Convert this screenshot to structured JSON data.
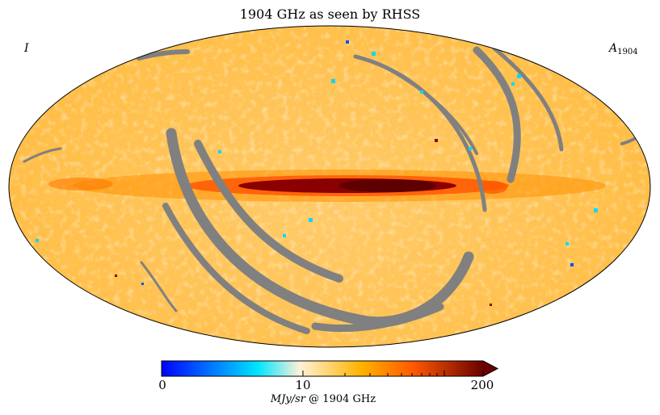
{
  "title": "1904 GHz as seen by RHSS",
  "corner_left": "I",
  "corner_right": {
    "base": "A",
    "sub": "1904"
  },
  "colorbar": {
    "ticks": [
      "0",
      "10",
      "200"
    ],
    "unit_italic": "MJy/sr",
    "unit_rest": " @ 1904 GHz",
    "min": 0,
    "max": 200,
    "colors": [
      "#0000ff",
      "#00e5ff",
      "#fff1d8",
      "#ffb300",
      "#ff5a00",
      "#6b0000"
    ]
  },
  "map": {
    "projection": "mollweide",
    "background_color": "#ffc24a",
    "masked_color": "#808080"
  }
}
